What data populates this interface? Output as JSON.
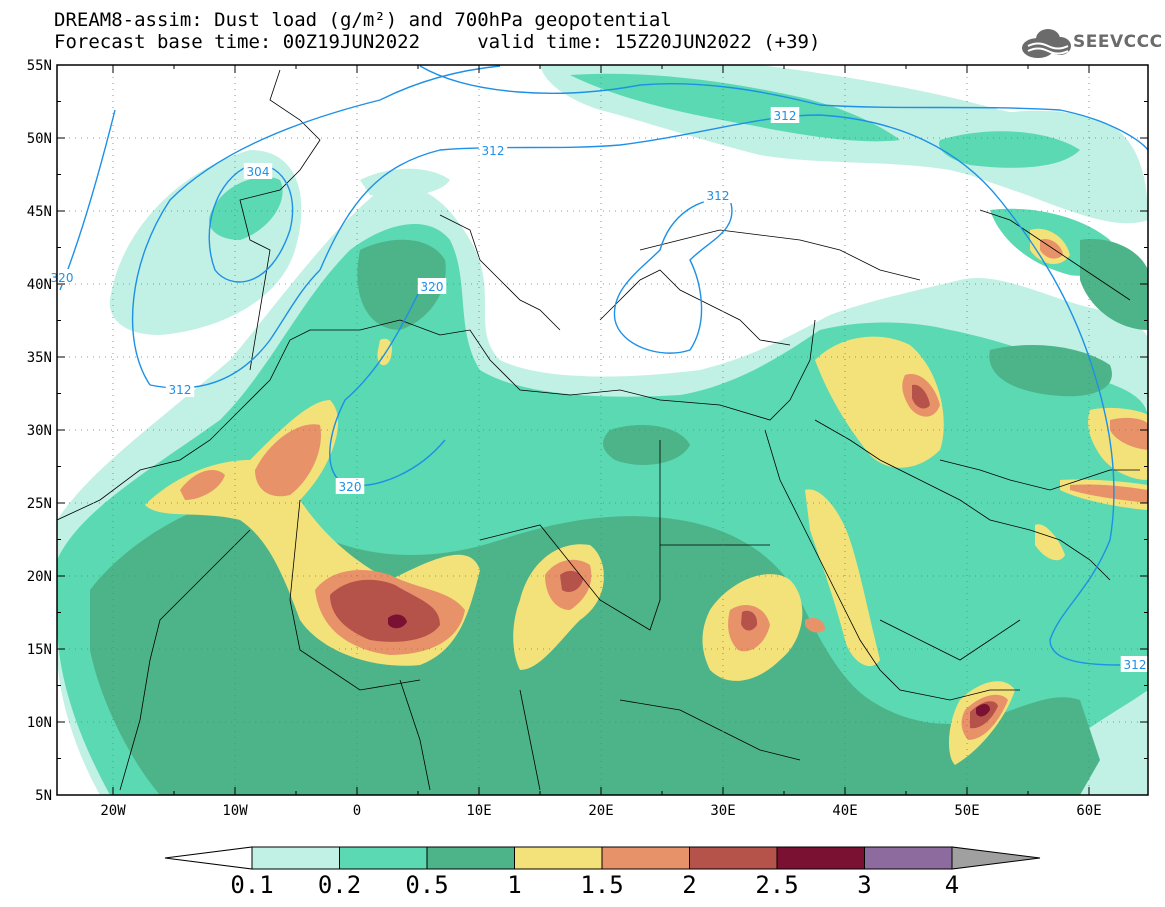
{
  "header": {
    "title_line1": "DREAM8-assim: Dust load (g/m²) and 700hPa geopotential",
    "title_line2": "Forecast base time: 00Z19JUN2022     valid time: 15Z20JUN2022 (+39)",
    "logo_text": "SEEVCCC"
  },
  "map": {
    "lon_ticks": [
      "20W",
      "10W",
      "0",
      "10E",
      "20E",
      "30E",
      "40E",
      "50E",
      "60E"
    ],
    "lat_ticks": [
      "55N",
      "50N",
      "45N",
      "40N",
      "35N",
      "30N",
      "25N",
      "20N",
      "15N",
      "10N",
      "5N"
    ],
    "contour_labels": [
      "304",
      "312",
      "312",
      "312",
      "312",
      "320",
      "320",
      "320",
      "312"
    ]
  },
  "colorbar": {
    "labels": [
      "0.1",
      "0.2",
      "0.5",
      "1",
      "1.5",
      "2",
      "2.5",
      "3",
      "4"
    ],
    "colors": [
      "#c1f0e4",
      "#5ad9b2",
      "#4db489",
      "#f3e27a",
      "#e8926a",
      "#b5524a",
      "#7a1032",
      "#8e6b9e"
    ],
    "under_color": "#ffffff",
    "over_color": "#a0a0a0"
  },
  "colors": {
    "contour": "#1e90e6",
    "border": "#000000"
  }
}
